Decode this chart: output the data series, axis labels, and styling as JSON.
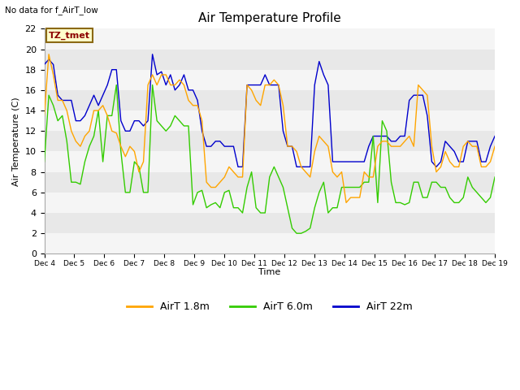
{
  "title": "Air Temperature Profile",
  "subtitle": "No data for f_AirT_low",
  "ylabel": "Air Temperature (C)",
  "xlabel": "Time",
  "ylim": [
    0,
    22
  ],
  "xlim": [
    0,
    15
  ],
  "x_tick_labels": [
    "Dec 4",
    "Dec 5",
    "Dec 6",
    "Dec 7",
    "Dec 8",
    "Dec 9",
    "Dec 10",
    "Dec 11",
    "Dec 12",
    "Dec 13",
    "Dec 14",
    "Dec 15",
    "Dec 16",
    "Dec 17",
    "Dec 18",
    "Dec 19"
  ],
  "yticks": [
    0,
    2,
    4,
    6,
    8,
    10,
    12,
    14,
    16,
    18,
    20,
    22
  ],
  "color_orange": "#FFA500",
  "color_green": "#33CC00",
  "color_blue": "#0000CC",
  "plot_bg": "#E8E8E8",
  "band_white": "#F5F5F5",
  "tz_tmet_bg": "#FFFFCC",
  "tz_tmet_border": "#8B6914",
  "tz_tmet_text": "#8B0000",
  "t_1m8": [
    13.5,
    19.5,
    17.5,
    15.0,
    15.0,
    14.0,
    12.0,
    11.0,
    10.5,
    11.5,
    12.0,
    14.0,
    14.0,
    14.5,
    13.5,
    12.0,
    11.8,
    10.5,
    9.5,
    10.5,
    10.0,
    8.0,
    9.0,
    16.5,
    17.5,
    16.5,
    17.5,
    17.5,
    16.5,
    16.5,
    17.0,
    16.5,
    15.0,
    14.5,
    14.5,
    13.0,
    7.0,
    6.5,
    6.5,
    7.0,
    7.5,
    8.5,
    8.0,
    7.5,
    7.5,
    16.5,
    16.0,
    15.0,
    14.5,
    16.5,
    16.5,
    17.0,
    16.5,
    14.5,
    10.5,
    10.5,
    10.0,
    8.5,
    8.0,
    7.5,
    10.0,
    11.5,
    11.0,
    10.5,
    8.0,
    7.5,
    8.0,
    5.0,
    5.5,
    5.5,
    5.5,
    8.0,
    7.5,
    7.5,
    10.5,
    11.0,
    11.0,
    10.5,
    10.5,
    10.5,
    11.0,
    11.5,
    10.5,
    16.5,
    16.0,
    15.5,
    10.5,
    8.0,
    8.5,
    10.0,
    9.0,
    8.5,
    8.5,
    10.5,
    11.0,
    10.5,
    10.5,
    8.5,
    8.5,
    9.0,
    10.5
  ],
  "t_6m": [
    9.0,
    15.5,
    14.5,
    13.0,
    13.5,
    11.0,
    7.0,
    7.0,
    6.8,
    9.0,
    10.5,
    11.5,
    14.0,
    9.0,
    13.5,
    13.5,
    16.5,
    10.0,
    6.0,
    6.0,
    9.0,
    8.5,
    6.0,
    6.0,
    16.5,
    13.0,
    12.5,
    12.0,
    12.5,
    13.5,
    13.0,
    12.5,
    12.5,
    4.8,
    6.0,
    6.2,
    4.5,
    4.8,
    5.0,
    4.5,
    6.0,
    6.2,
    4.5,
    4.5,
    4.0,
    6.5,
    8.0,
    4.5,
    4.0,
    4.0,
    7.5,
    8.5,
    7.5,
    6.5,
    4.5,
    2.5,
    2.0,
    2.0,
    2.2,
    2.5,
    4.5,
    6.0,
    7.0,
    4.0,
    4.5,
    4.5,
    6.5,
    6.5,
    6.5,
    6.5,
    6.5,
    7.0,
    7.0,
    11.5,
    5.0,
    13.0,
    12.0,
    7.0,
    5.0,
    5.0,
    4.8,
    5.0,
    7.0,
    7.0,
    5.5,
    5.5,
    7.0,
    7.0,
    6.5,
    6.5,
    5.5,
    5.0,
    5.0,
    5.5,
    7.5,
    6.5,
    6.0,
    5.5,
    5.0,
    5.5,
    7.5
  ],
  "t_22m": [
    18.5,
    19.0,
    18.5,
    15.5,
    15.0,
    15.0,
    15.0,
    13.0,
    13.0,
    13.5,
    14.5,
    15.5,
    14.5,
    15.5,
    16.5,
    18.0,
    18.0,
    13.0,
    12.0,
    12.0,
    13.0,
    13.0,
    12.5,
    13.0,
    19.5,
    17.5,
    17.8,
    16.5,
    17.5,
    16.0,
    16.5,
    17.5,
    16.0,
    16.0,
    15.0,
    12.0,
    10.5,
    10.5,
    11.0,
    11.0,
    10.5,
    10.5,
    10.5,
    8.5,
    8.5,
    16.5,
    16.5,
    16.5,
    16.5,
    17.5,
    16.5,
    16.5,
    16.5,
    12.0,
    10.5,
    10.5,
    8.5,
    8.5,
    8.5,
    8.5,
    16.5,
    18.8,
    17.5,
    16.5,
    9.0,
    9.0,
    9.0,
    9.0,
    9.0,
    9.0,
    9.0,
    9.0,
    10.5,
    11.5,
    11.5,
    11.5,
    11.5,
    11.0,
    11.0,
    11.5,
    11.5,
    15.0,
    15.5,
    15.5,
    15.5,
    13.5,
    9.0,
    8.5,
    9.0,
    11.0,
    10.5,
    10.0,
    9.0,
    9.0,
    11.0,
    11.0,
    11.0,
    9.0,
    9.0,
    10.5,
    11.5
  ]
}
